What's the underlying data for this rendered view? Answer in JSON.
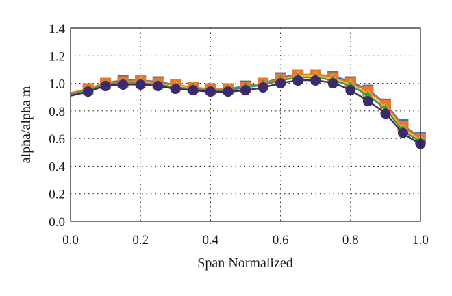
{
  "chart_data": {
    "type": "line",
    "title": "",
    "xlabel": "Span Normalized",
    "ylabel": "alpha/alpha m",
    "xlim": [
      0,
      1
    ],
    "ylim": [
      0,
      1.4
    ],
    "x_ticks": [
      "0.0",
      "0.2",
      "0.4",
      "0.6",
      "0.8",
      "1.0"
    ],
    "y_ticks": [
      "0.0",
      "0.2",
      "0.4",
      "0.6",
      "0.8",
      "1.0",
      "1.2",
      "1.4"
    ],
    "grid": "dotted",
    "legend": "none",
    "series": [
      {
        "color": "#4a6fa5",
        "marker": "square",
        "x": [
          0,
          0.05,
          0.1,
          0.15,
          0.2,
          0.25,
          0.3,
          0.35,
          0.4,
          0.45,
          0.5,
          0.55,
          0.6,
          0.65,
          0.7,
          0.75,
          0.8,
          0.85,
          0.9,
          0.95,
          1.0
        ],
        "values": [
          0.93,
          0.96,
          1.0,
          1.02,
          1.02,
          1.01,
          0.99,
          0.97,
          0.96,
          0.96,
          0.98,
          1.0,
          1.04,
          1.06,
          1.06,
          1.05,
          1.01,
          0.95,
          0.85,
          0.7,
          0.61
        ]
      },
      {
        "color": "#e8782a",
        "marker": "square",
        "x": [
          0,
          0.05,
          0.1,
          0.15,
          0.2,
          0.25,
          0.3,
          0.35,
          0.4,
          0.45,
          0.5,
          0.55,
          0.6,
          0.65,
          0.7,
          0.75,
          0.8,
          0.85,
          0.9,
          0.95,
          1.0
        ],
        "values": [
          0.93,
          0.96,
          1.0,
          1.01,
          1.02,
          1.0,
          0.99,
          0.97,
          0.96,
          0.96,
          0.97,
          1.0,
          1.03,
          1.06,
          1.06,
          1.04,
          1.0,
          0.94,
          0.84,
          0.69,
          0.6
        ]
      },
      {
        "color": "#f2c12e",
        "marker": "triangle",
        "x": [
          0,
          0.05,
          0.1,
          0.15,
          0.2,
          0.25,
          0.3,
          0.35,
          0.4,
          0.45,
          0.5,
          0.55,
          0.6,
          0.65,
          0.7,
          0.75,
          0.8,
          0.85,
          0.9,
          0.95,
          1.0
        ],
        "values": [
          0.92,
          0.95,
          0.99,
          1.0,
          1.01,
          0.99,
          0.98,
          0.96,
          0.95,
          0.95,
          0.97,
          0.99,
          1.02,
          1.05,
          1.05,
          1.03,
          0.99,
          0.92,
          0.82,
          0.67,
          0.59
        ]
      },
      {
        "color": "#3a9a4a",
        "marker": "triangle",
        "x": [
          0,
          0.05,
          0.1,
          0.15,
          0.2,
          0.25,
          0.3,
          0.35,
          0.4,
          0.45,
          0.5,
          0.55,
          0.6,
          0.65,
          0.7,
          0.75,
          0.8,
          0.85,
          0.9,
          0.95,
          1.0
        ],
        "values": [
          0.92,
          0.95,
          0.99,
          1.0,
          1.0,
          0.99,
          0.97,
          0.96,
          0.95,
          0.95,
          0.97,
          0.99,
          1.02,
          1.04,
          1.04,
          1.02,
          0.98,
          0.91,
          0.81,
          0.66,
          0.58
        ]
      },
      {
        "color": "#3b2a6e",
        "marker": "circle",
        "x": [
          0,
          0.05,
          0.1,
          0.15,
          0.2,
          0.25,
          0.3,
          0.35,
          0.4,
          0.45,
          0.5,
          0.55,
          0.6,
          0.65,
          0.7,
          0.75,
          0.8,
          0.85,
          0.9,
          0.95,
          1.0
        ],
        "values": [
          0.91,
          0.94,
          0.98,
          0.99,
          0.99,
          0.98,
          0.96,
          0.95,
          0.94,
          0.94,
          0.95,
          0.97,
          1.0,
          1.02,
          1.02,
          1.0,
          0.95,
          0.87,
          0.78,
          0.64,
          0.56
        ]
      }
    ]
  }
}
